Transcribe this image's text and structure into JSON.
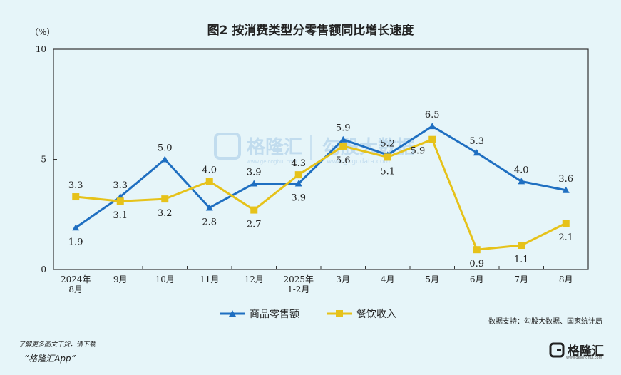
{
  "chart_data": {
    "type": "line",
    "title": "图2  按消费类型分零售额同比增长速度",
    "unit_label": "（%）",
    "ylim": [
      0,
      10
    ],
    "yticks": [
      "0",
      "5",
      "10"
    ],
    "categories": [
      [
        "2024年",
        "8月"
      ],
      [
        "9月"
      ],
      [
        "10月"
      ],
      [
        "11月"
      ],
      [
        "12月"
      ],
      [
        "2025年",
        "1-2月"
      ],
      [
        "3月"
      ],
      [
        "4月"
      ],
      [
        "5月"
      ],
      [
        "6月"
      ],
      [
        "7月"
      ],
      [
        "8月"
      ]
    ],
    "series": [
      {
        "name": "商品零售额",
        "color": "#1f6fc1",
        "marker": "triangle",
        "values": [
          1.9,
          3.3,
          5.0,
          2.8,
          3.9,
          3.9,
          5.9,
          5.2,
          6.5,
          5.3,
          4.0,
          3.6
        ],
        "labels": [
          "1.9",
          "3.3",
          "5.0",
          "2.8",
          "3.9",
          "3.9",
          "5.9",
          "5.2",
          "6.5",
          "5.3",
          "4.0",
          "3.6"
        ],
        "label_pos": [
          "below",
          "above",
          "above",
          "below",
          "above",
          "below",
          "above",
          "above",
          "above",
          "above",
          "above",
          "above"
        ]
      },
      {
        "name": "餐饮收入",
        "color": "#e6c21a",
        "marker": "square",
        "values": [
          3.3,
          3.1,
          3.2,
          4.0,
          2.7,
          4.3,
          5.6,
          5.1,
          5.9,
          0.9,
          1.1,
          2.1
        ],
        "labels": [
          "3.3",
          "3.1",
          "3.2",
          "4.0",
          "2.7",
          "4.3",
          "5.6",
          "5.1",
          "5.9",
          "0.9",
          "1.1",
          "2.1"
        ],
        "label_pos": [
          "above",
          "below",
          "below",
          "above",
          "below",
          "above",
          "below",
          "below",
          "left",
          "below",
          "below",
          "below"
        ]
      }
    ],
    "legend_position": "bottom",
    "grid": false
  },
  "source": "数据支持：勾股大数据、国家统计局",
  "watermark": {
    "brand": "格隆汇",
    "brand_url": "www.gelonghui.com",
    "data_brand": "勾股大数据",
    "data_url": "www.gogudata.com"
  },
  "footer": {
    "note": "了解更多图文干货，请下载",
    "app": "“格隆汇App”",
    "logo_text": "格隆汇",
    "logo_url": "www.gelonghui.com"
  },
  "colors": {
    "background": "#e6f5f9",
    "axis": "#333333"
  }
}
